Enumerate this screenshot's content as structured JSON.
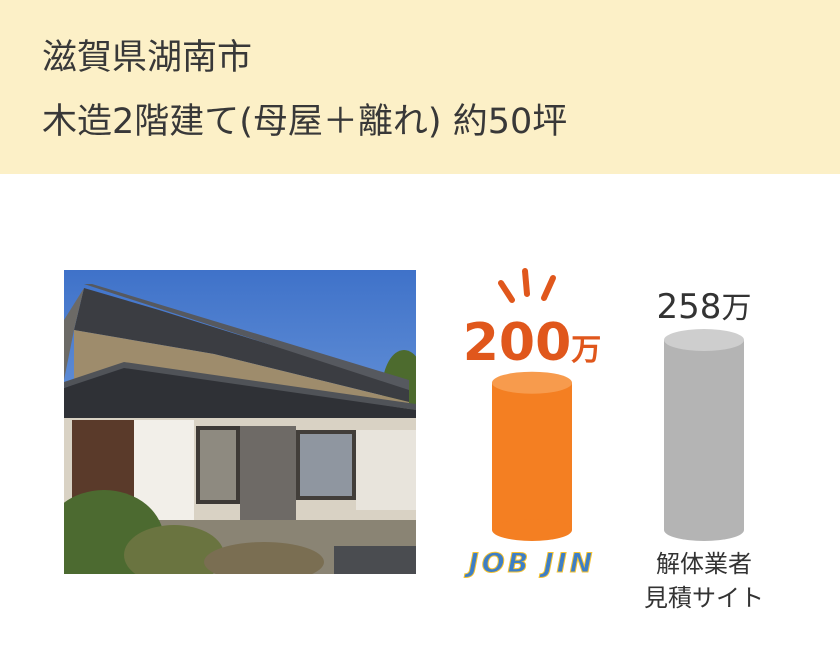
{
  "header": {
    "location": "滋賀県湖南市",
    "spec": "木造2階建て(母屋＋離れ) 約50坪"
  },
  "colors": {
    "header_bg": "#fcf0c7",
    "jobjin_bar": "#f47f22",
    "jobjin_bar_top": "#f79b4d",
    "jobjin_value": "#e0571c",
    "other_bar": "#b4b4b4",
    "other_bar_top": "#cecece",
    "logo_blue": "#3d7ec6",
    "logo_yellow": "#f5c230"
  },
  "chart_data": {
    "type": "bar",
    "unit": "万",
    "categories": [
      "JOB JIN",
      "解体業者\n見積サイト"
    ],
    "values": [
      200,
      258
    ],
    "value_labels": [
      "200",
      "258"
    ],
    "ylim": [
      0,
      258
    ]
  },
  "labels": {
    "jobjin_logo": "JOB JIN",
    "other_line1": "解体業者",
    "other_line2": "見積サイト"
  }
}
